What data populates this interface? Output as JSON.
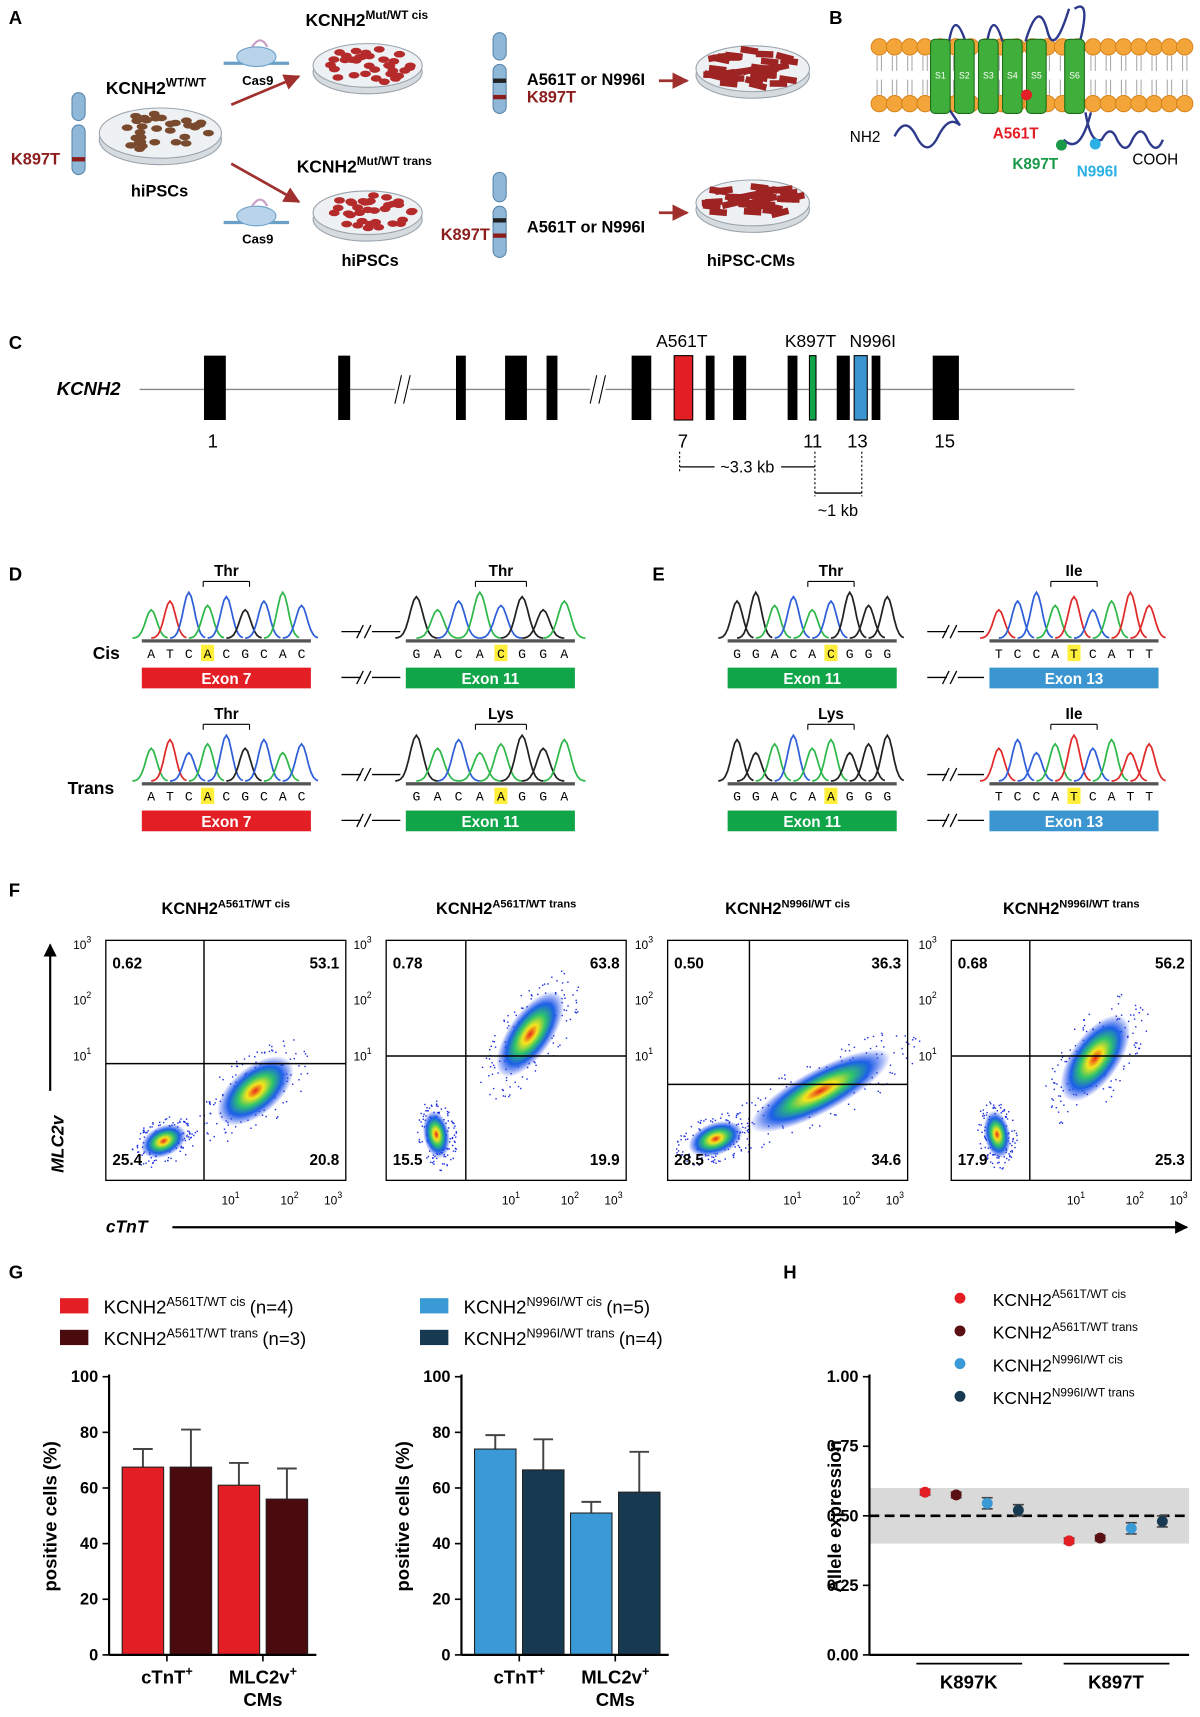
{
  "figure": {
    "panel_labels": [
      "A",
      "B",
      "C",
      "D",
      "E",
      "F",
      "G",
      "H"
    ],
    "panel_a": {
      "wt_title": {
        "base": "KCNH2",
        "sup": "WT/WT"
      },
      "wt_mutation": "K897T",
      "wt_cells": "hiPSCs",
      "cas9": [
        "Cas9",
        "Cas9"
      ],
      "cis_title": {
        "base": "KCNH2",
        "sup": "Mut/WT cis"
      },
      "cis_mutation_1": "A561T or N996I",
      "cis_mutation_2": "K897T",
      "trans_title": {
        "base": "KCNH2",
        "sup": "Mut/WT trans"
      },
      "trans_mutation_1": "K897T",
      "trans_mutation_2": "A561T or N996I",
      "trans_cells": "hiPSCs",
      "cms": "hiPSC-CMs"
    },
    "panel_b": {
      "segments": [
        "S1",
        "S2",
        "S3",
        "S4",
        "S5",
        "S6"
      ],
      "nh2": "NH2",
      "a561t": "A561T",
      "k897t": "K897T",
      "n996i": "N996I",
      "cooh": "COOH"
    },
    "panel_c": {
      "gene": "KCNH2",
      "mutations": [
        "A561T",
        "K897T",
        "N996I"
      ],
      "exons": [
        "1",
        "7",
        "11",
        "13",
        "15"
      ],
      "distance_1": "~3.3 kb",
      "distance_2": "~1 kb"
    },
    "panel_de": {
      "rows": [
        "Cis",
        "Trans"
      ],
      "traces": [
        {
          "codon": "Thr",
          "sequence": "ATCACGCAC",
          "highlight": 3,
          "codon_start": 3,
          "exon": "Exon 7",
          "color": "#e31e24"
        },
        {
          "codon": "Thr",
          "sequence": "GACACGGA",
          "highlight": 4,
          "codon_start": 3,
          "exon": "Exon 11",
          "color": "#11a54a"
        },
        {
          "codon": "Thr",
          "sequence": "ATCACGCAC",
          "highlight": 3,
          "codon_start": 3,
          "exon": "Exon 7",
          "color": "#e31e24"
        },
        {
          "codon": "Lys",
          "sequence": "GACAAGGA",
          "highlight": 4,
          "codon_start": 3,
          "exon": "Exon 11",
          "color": "#11a54a"
        },
        {
          "codon": "Thr",
          "sequence": "GGACACGGG",
          "highlight": 5,
          "codon_start": 4,
          "exon": "Exon 11",
          "color": "#11a54a"
        },
        {
          "codon": "Ile",
          "sequence": "TCCATCATT",
          "highlight": 4,
          "codon_start": 3,
          "exon": "Exon 13",
          "color": "#3a95d1"
        },
        {
          "codon": "Lys",
          "sequence": "GGACAAGGG",
          "highlight": 5,
          "codon_start": 4,
          "exon": "Exon 11",
          "color": "#11a54a"
        },
        {
          "codon": "Ile",
          "sequence": "TCCATCATT",
          "highlight": 4,
          "codon_start": 3,
          "exon": "Exon 13",
          "color": "#3a95d1"
        }
      ]
    },
    "panel_f": {
      "y_label": "MLC2v",
      "x_label": "cTnT",
      "tick_base": "10",
      "tick_exponents": [
        "1",
        "2",
        "3"
      ],
      "plots": [
        {
          "title": {
            "base": "KCNH2",
            "sup": "A561T/WT cis"
          },
          "upper_left": "0.62",
          "upper_right": "53.1",
          "lower_left": "25.4",
          "lower_right": "20.8"
        },
        {
          "title": {
            "base": "KCNH2",
            "sup": "A561T/WT trans"
          },
          "upper_left": "0.78",
          "upper_right": "63.8",
          "lower_left": "15.5",
          "lower_right": "19.9"
        },
        {
          "title": {
            "base": "KCNH2",
            "sup": "N996I/WT cis"
          },
          "upper_left": "0.50",
          "upper_right": "36.3",
          "lower_left": "28.5",
          "lower_right": "34.6"
        },
        {
          "title": {
            "base": "KCNH2",
            "sup": "N996I/WT trans"
          },
          "upper_left": "0.68",
          "upper_right": "56.2",
          "lower_left": "17.9",
          "lower_right": "25.3"
        }
      ]
    }
  },
  "chart_data": [
    {
      "type": "bar",
      "y_label": "positive cells (%)",
      "categories": [
        {
          "base": "cTnT",
          "sup": "+"
        },
        {
          "base": "MLC2v",
          "sup": "+",
          "line2": "CMs"
        }
      ],
      "ylim": [
        0,
        100
      ],
      "yticks": [
        0,
        20,
        40,
        60,
        80,
        100
      ],
      "series": [
        {
          "name": "KCNH2",
          "name_sup": "A561T/WT cis",
          "n_label": "(n=4)",
          "color": "#e31e24",
          "values": [
            67.5,
            61
          ],
          "errors": [
            6.5,
            8
          ]
        },
        {
          "name": "KCNH2",
          "name_sup": "A561T/WT trans",
          "n_label": "(n=3)",
          "color": "#4a0a0e",
          "values": [
            67.5,
            56
          ],
          "errors": [
            13.5,
            11
          ]
        }
      ]
    },
    {
      "type": "bar",
      "y_label": "positive cells (%)",
      "categories": [
        {
          "base": "cTnT",
          "sup": "+"
        },
        {
          "base": "MLC2v",
          "sup": "+",
          "line2": "CMs"
        }
      ],
      "ylim": [
        0,
        100
      ],
      "yticks": [
        0,
        20,
        40,
        60,
        80,
        100
      ],
      "series": [
        {
          "name": "KCNH2",
          "name_sup": "N996I/WT cis",
          "n_label": "(n=5)",
          "color": "#3a9ad6",
          "values": [
            74,
            51
          ],
          "errors": [
            5,
            4
          ]
        },
        {
          "name": "KCNH2",
          "name_sup": "N996I/WT trans",
          "n_label": "(n=4)",
          "color": "#173a52",
          "values": [
            66.5,
            58.5
          ],
          "errors": [
            11,
            14.5
          ]
        }
      ]
    },
    {
      "type": "dot",
      "y_label": "Allele expression",
      "categories": [
        "K897K",
        "K897T"
      ],
      "ylim": [
        0,
        1
      ],
      "yticks": [
        {
          "value": 0,
          "label": "0.00"
        },
        {
          "value": 0.25,
          "label": "0.25"
        },
        {
          "value": 0.5,
          "label": "0.50"
        },
        {
          "value": 0.75,
          "label": "0.75"
        },
        {
          "value": 1,
          "label": "1.00"
        }
      ],
      "reference_line": 0.5,
      "band": [
        0.4,
        0.6
      ],
      "series": [
        {
          "name": "KCNH2",
          "name_sup": "A561T/WT cis",
          "color": "#e31e24",
          "values": [
            0.585,
            0.41
          ],
          "errors": [
            0.01,
            0.01
          ]
        },
        {
          "name": "KCNH2",
          "name_sup": "A561T/WT trans",
          "color": "#5a0f12",
          "values": [
            0.575,
            0.42
          ],
          "errors": [
            0.01,
            0.01
          ]
        },
        {
          "name": "KCNH2",
          "name_sup": "N996I/WT cis",
          "color": "#3a9ad6",
          "values": [
            0.545,
            0.455
          ],
          "errors": [
            0.02,
            0.02
          ]
        },
        {
          "name": "KCNH2",
          "name_sup": "N996I/WT trans",
          "color": "#173a52",
          "values": [
            0.52,
            0.48
          ],
          "errors": [
            0.02,
            0.02
          ]
        }
      ]
    }
  ]
}
